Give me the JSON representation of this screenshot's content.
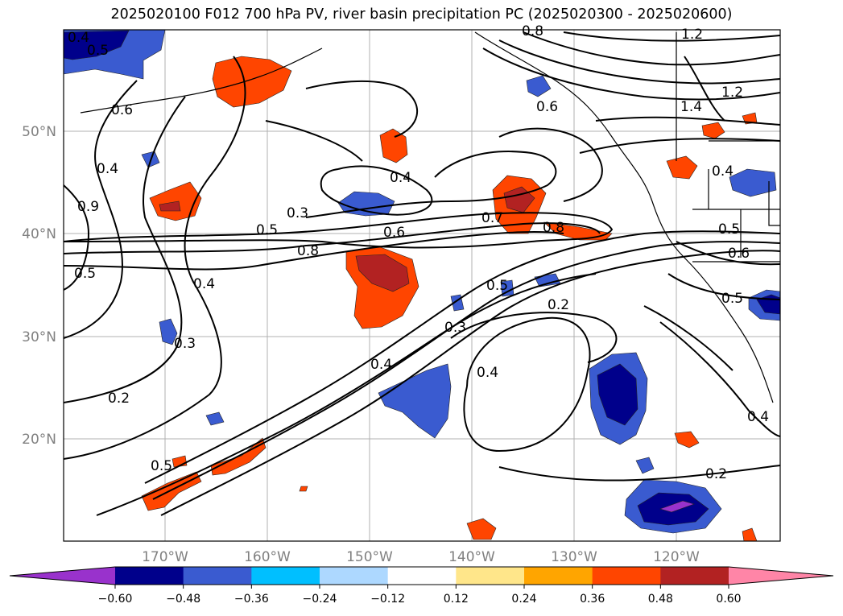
{
  "title": "2025020100 F012 700 hPa PV, river basin precipitation PC (2025020300 - 2025020600)",
  "lat_labels": [
    "50°N",
    "40°N",
    "30°N",
    "20°N"
  ],
  "lon_labels": [
    "170°W",
    "160°W",
    "150°W",
    "140°W",
    "130°W",
    "120°W"
  ],
  "contour_labels": [
    "0.4",
    "0.5",
    "0.6",
    "0.4",
    "0.9",
    "0.5",
    "0.4",
    "0.3",
    "0.2",
    "0.5",
    "0.3",
    "0.5",
    "0.8",
    "0.4",
    "0.6",
    "0.7",
    "0.8",
    "0.5",
    "0.3",
    "0.2",
    "0.4",
    "0.4",
    "0.6",
    "0.8",
    "1.2",
    "1.4",
    "1.2",
    "0.4",
    "0.6",
    "0.5",
    "0.4",
    "0.2",
    "0.5"
  ],
  "colorbar": {
    "ticks": [
      "−0.60",
      "−0.48",
      "−0.36",
      "−0.24",
      "−0.12",
      "0.12",
      "0.24",
      "0.36",
      "0.48",
      "0.60"
    ],
    "colors": [
      "#9932cc",
      "#00008b",
      "#3a5bd0",
      "#00bfff",
      "#add8ff",
      "#ffffff",
      "#ffe68a",
      "#ffa500",
      "#ff4500",
      "#b22222",
      "#ff85a7"
    ]
  }
}
